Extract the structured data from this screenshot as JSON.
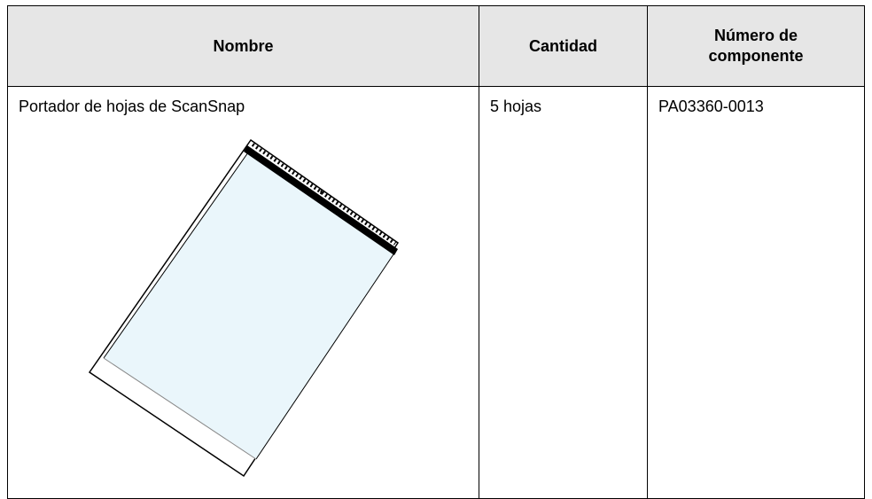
{
  "table": {
    "header": [
      "Nombre",
      "Cantidad",
      "Número de componente"
    ],
    "rows": [
      [
        "Portador de hojas de ScanSnap",
        "5 hojas",
        "PA03360-0013"
      ]
    ]
  }
}
